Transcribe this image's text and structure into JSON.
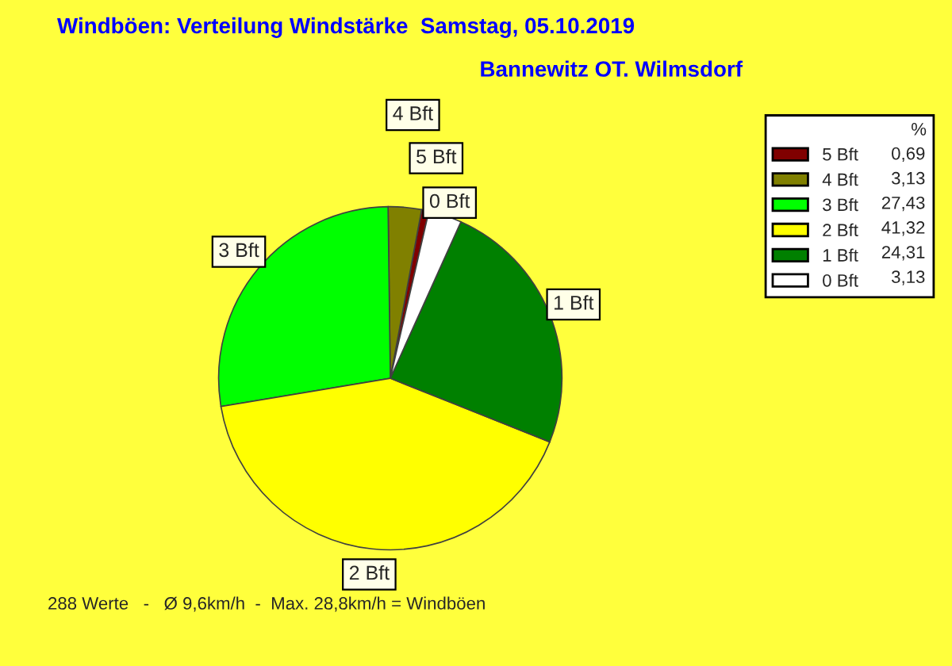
{
  "chart_data": {
    "type": "pie",
    "title": "Windböen: Verteilung Windstärke  Samstag, 05.10.2019",
    "subtitle": "Bannewitz OT. Wilmsdorf",
    "categories": [
      "5 Bft",
      "4 Bft",
      "3 Bft",
      "2 Bft",
      "1 Bft",
      "0 Bft"
    ],
    "values": [
      0.69,
      3.13,
      27.43,
      41.32,
      24.31,
      3.13
    ],
    "value_labels": [
      "0,69",
      "3,13",
      "27,43",
      "41,32",
      "24,31",
      "3,13"
    ],
    "colors": [
      "#800000",
      "#808000",
      "#00ff00",
      "#ffff00",
      "#008000",
      "#ffffff"
    ],
    "legend": "right",
    "legend_title": "%",
    "annotations": [
      "288 Werte   -   Ø 9,6km/h  -  Max. 28,8km/h = Windböen"
    ]
  }
}
